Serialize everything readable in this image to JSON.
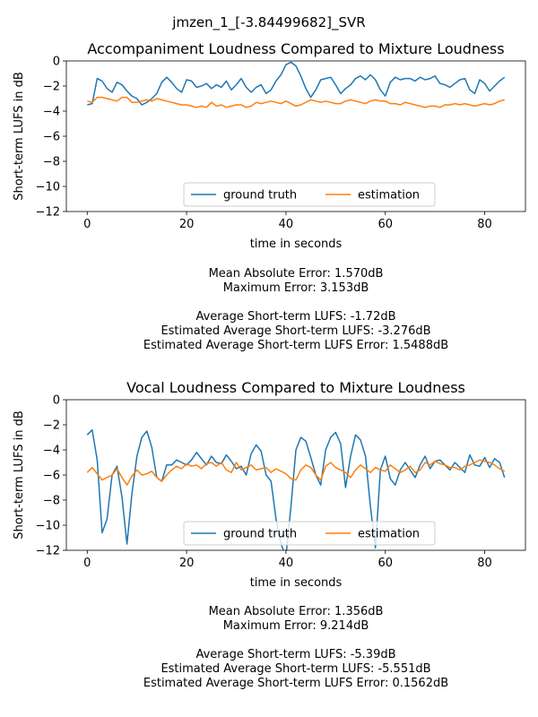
{
  "figure_title": "jmzen_1_[-3.84499682]_SVR",
  "chart_data": [
    {
      "type": "line",
      "title": "Accompaniment Loudness Compared to Mixture Loudness",
      "xlabel": "time in seconds",
      "ylabel": "Short-term LUFS in dB",
      "xlim": [
        -4.2,
        88.2
      ],
      "ylim": [
        -12,
        0
      ],
      "xticks": [
        0,
        20,
        40,
        60,
        80
      ],
      "yticks": [
        0,
        -2,
        -4,
        -6,
        -8,
        -10,
        -12
      ],
      "grid": false,
      "legend": {
        "placement": "lower-center",
        "columns": 2
      },
      "series": [
        {
          "name": "ground truth",
          "color": "#1f77b4",
          "x": [
            0,
            1,
            2,
            3,
            4,
            5,
            6,
            7,
            8,
            9,
            10,
            11,
            12,
            13,
            14,
            15,
            16,
            17,
            18,
            19,
            20,
            21,
            22,
            23,
            24,
            25,
            26,
            27,
            28,
            29,
            30,
            31,
            32,
            33,
            34,
            35,
            36,
            37,
            38,
            39,
            40,
            41,
            42,
            43,
            44,
            45,
            46,
            47,
            48,
            49,
            50,
            51,
            52,
            53,
            54,
            55,
            56,
            57,
            58,
            59,
            60,
            61,
            62,
            63,
            64,
            65,
            66,
            67,
            68,
            69,
            70,
            71,
            72,
            73,
            74,
            75,
            76,
            77,
            78,
            79,
            80,
            81,
            82,
            83,
            84
          ],
          "y": [
            -3.5,
            -3.4,
            -1.4,
            -1.6,
            -2.2,
            -2.5,
            -1.7,
            -1.9,
            -2.4,
            -2.8,
            -3.0,
            -3.5,
            -3.3,
            -3.0,
            -2.6,
            -1.7,
            -1.3,
            -1.7,
            -2.2,
            -2.5,
            -1.5,
            -1.6,
            -2.1,
            -2.0,
            -1.8,
            -2.2,
            -1.9,
            -2.1,
            -1.6,
            -2.3,
            -1.9,
            -1.4,
            -2.1,
            -2.5,
            -2.1,
            -1.9,
            -2.6,
            -2.3,
            -1.6,
            -1.1,
            -0.3,
            -0.1,
            -0.4,
            -1.2,
            -2.2,
            -2.9,
            -2.3,
            -1.5,
            -1.4,
            -1.3,
            -1.9,
            -2.6,
            -2.2,
            -1.9,
            -1.4,
            -1.2,
            -1.5,
            -1.1,
            -1.5,
            -2.3,
            -2.8,
            -1.7,
            -1.3,
            -1.5,
            -1.4,
            -1.4,
            -1.6,
            -1.3,
            -1.5,
            -1.4,
            -1.2,
            -1.8,
            -1.9,
            -2.1,
            -1.8,
            -1.5,
            -1.4,
            -2.3,
            -2.6,
            -1.5,
            -1.8,
            -2.4,
            -2.0,
            -1.6,
            -1.3
          ]
        },
        {
          "name": "estimation",
          "color": "#ff7f0e",
          "x": [
            0,
            1,
            2,
            3,
            4,
            5,
            6,
            7,
            8,
            9,
            10,
            11,
            12,
            13,
            14,
            15,
            16,
            17,
            18,
            19,
            20,
            21,
            22,
            23,
            24,
            25,
            26,
            27,
            28,
            29,
            30,
            31,
            32,
            33,
            34,
            35,
            36,
            37,
            38,
            39,
            40,
            41,
            42,
            43,
            44,
            45,
            46,
            47,
            48,
            49,
            50,
            51,
            52,
            53,
            54,
            55,
            56,
            57,
            58,
            59,
            60,
            61,
            62,
            63,
            64,
            65,
            66,
            67,
            68,
            69,
            70,
            71,
            72,
            73,
            74,
            75,
            76,
            77,
            78,
            79,
            80,
            81,
            82,
            83,
            84
          ],
          "y": [
            -3.2,
            -3.3,
            -2.9,
            -2.9,
            -3.0,
            -3.1,
            -3.2,
            -2.9,
            -2.9,
            -3.3,
            -3.3,
            -3.2,
            -3.1,
            -3.2,
            -3.0,
            -3.1,
            -3.2,
            -3.3,
            -3.4,
            -3.5,
            -3.5,
            -3.6,
            -3.7,
            -3.6,
            -3.7,
            -3.3,
            -3.6,
            -3.5,
            -3.7,
            -3.6,
            -3.5,
            -3.5,
            -3.7,
            -3.6,
            -3.3,
            -3.4,
            -3.3,
            -3.2,
            -3.3,
            -3.4,
            -3.2,
            -3.4,
            -3.6,
            -3.5,
            -3.3,
            -3.1,
            -3.2,
            -3.3,
            -3.2,
            -3.3,
            -3.4,
            -3.4,
            -3.2,
            -3.1,
            -3.2,
            -3.3,
            -3.4,
            -3.2,
            -3.1,
            -3.2,
            -3.2,
            -3.4,
            -3.4,
            -3.5,
            -3.3,
            -3.4,
            -3.5,
            -3.6,
            -3.7,
            -3.6,
            -3.6,
            -3.7,
            -3.5,
            -3.5,
            -3.4,
            -3.5,
            -3.4,
            -3.5,
            -3.6,
            -3.5,
            -3.4,
            -3.5,
            -3.4,
            -3.2,
            -3.1
          ]
        }
      ],
      "annotations": [
        "Mean Absolute Error: 1.570dB",
        "Maximum Error: 3.153dB",
        "",
        "Average Short-term LUFS: -1.72dB",
        "Estimated Average Short-term LUFS: -3.276dB",
        "Estimated Average Short-term LUFS Error: 1.5488dB"
      ]
    },
    {
      "type": "line",
      "title": "Vocal Loudness Compared to Mixture Loudness",
      "xlabel": "time in seconds",
      "ylabel": "Short-term LUFS in dB",
      "xlim": [
        -4.2,
        88.2
      ],
      "ylim": [
        -12,
        0
      ],
      "xticks": [
        0,
        20,
        40,
        60,
        80
      ],
      "yticks": [
        0,
        -2,
        -4,
        -6,
        -8,
        -10,
        -12
      ],
      "grid": false,
      "legend": {
        "placement": "lower-center",
        "columns": 2
      },
      "series": [
        {
          "name": "ground truth",
          "color": "#1f77b4",
          "x": [
            0,
            1,
            2,
            3,
            4,
            5,
            6,
            7,
            8,
            9,
            10,
            11,
            12,
            13,
            14,
            15,
            16,
            17,
            18,
            19,
            20,
            21,
            22,
            23,
            24,
            25,
            26,
            27,
            28,
            29,
            30,
            31,
            32,
            33,
            34,
            35,
            36,
            37,
            38,
            39,
            40,
            41,
            42,
            43,
            44,
            45,
            46,
            47,
            48,
            49,
            50,
            51,
            52,
            53,
            54,
            55,
            56,
            57,
            58,
            59,
            60,
            61,
            62,
            63,
            64,
            65,
            66,
            67,
            68,
            69,
            70,
            71,
            72,
            73,
            74,
            75,
            76,
            77,
            78,
            79,
            80,
            81,
            82,
            83,
            84
          ],
          "y": [
            -2.8,
            -2.4,
            -4.8,
            -10.6,
            -9.5,
            -6.0,
            -5.3,
            -7.8,
            -11.5,
            -7.5,
            -4.5,
            -3.0,
            -2.5,
            -3.8,
            -6.2,
            -6.5,
            -5.2,
            -5.2,
            -4.8,
            -5.0,
            -5.2,
            -4.8,
            -4.2,
            -4.7,
            -5.2,
            -4.5,
            -5.0,
            -5.1,
            -4.4,
            -4.9,
            -5.5,
            -5.3,
            -6.0,
            -4.3,
            -3.6,
            -4.1,
            -6.0,
            -6.5,
            -9.5,
            -11.5,
            -12.5,
            -8.5,
            -4.0,
            -3.0,
            -3.3,
            -4.6,
            -6.0,
            -6.8,
            -4.0,
            -3.0,
            -2.6,
            -3.5,
            -7.0,
            -4.5,
            -2.8,
            -3.2,
            -4.5,
            -8.5,
            -11.8,
            -5.6,
            -4.5,
            -6.3,
            -6.8,
            -5.6,
            -5.0,
            -5.6,
            -6.2,
            -5.2,
            -4.5,
            -5.5,
            -4.9,
            -4.8,
            -5.2,
            -5.6,
            -5.0,
            -5.4,
            -5.8,
            -4.4,
            -5.2,
            -5.3,
            -4.6,
            -5.4,
            -4.7,
            -5.0,
            -6.2
          ]
        },
        {
          "name": "estimation",
          "color": "#ff7f0e",
          "x": [
            0,
            1,
            2,
            3,
            4,
            5,
            6,
            7,
            8,
            9,
            10,
            11,
            12,
            13,
            14,
            15,
            16,
            17,
            18,
            19,
            20,
            21,
            22,
            23,
            24,
            25,
            26,
            27,
            28,
            29,
            30,
            31,
            32,
            33,
            34,
            35,
            36,
            37,
            38,
            39,
            40,
            41,
            42,
            43,
            44,
            45,
            46,
            47,
            48,
            49,
            50,
            51,
            52,
            53,
            54,
            55,
            56,
            57,
            58,
            59,
            60,
            61,
            62,
            63,
            64,
            65,
            66,
            67,
            68,
            69,
            70,
            71,
            72,
            73,
            74,
            75,
            76,
            77,
            78,
            79,
            80,
            81,
            82,
            83,
            84
          ],
          "y": [
            -5.8,
            -5.4,
            -5.9,
            -6.4,
            -6.2,
            -6.0,
            -5.5,
            -6.2,
            -6.8,
            -6.1,
            -5.6,
            -6.0,
            -5.9,
            -5.7,
            -6.2,
            -6.5,
            -6.0,
            -5.6,
            -5.3,
            -5.5,
            -5.1,
            -5.3,
            -5.2,
            -5.5,
            -5.1,
            -5.0,
            -5.3,
            -5.0,
            -5.6,
            -5.8,
            -5.0,
            -5.6,
            -5.4,
            -5.2,
            -5.6,
            -5.5,
            -5.4,
            -5.8,
            -5.5,
            -5.7,
            -5.9,
            -6.3,
            -6.4,
            -5.6,
            -5.2,
            -5.4,
            -6.0,
            -6.4,
            -5.3,
            -5.0,
            -5.4,
            -5.6,
            -5.8,
            -6.2,
            -5.6,
            -5.2,
            -5.5,
            -5.8,
            -5.4,
            -5.6,
            -5.7,
            -5.2,
            -5.5,
            -5.8,
            -5.6,
            -5.3,
            -5.8,
            -5.6,
            -5.0,
            -5.2,
            -4.9,
            -5.1,
            -5.2,
            -5.4,
            -5.4,
            -5.6,
            -5.3,
            -5.2,
            -5.0,
            -4.8,
            -4.9,
            -5.0,
            -5.2,
            -5.5,
            -5.7
          ]
        }
      ],
      "annotations": [
        "Mean Absolute Error: 1.356dB",
        "Maximum Error: 9.214dB",
        "",
        "Average Short-term LUFS: -5.39dB",
        "Estimated Average Short-term LUFS: -5.551dB",
        "Estimated Average Short-term LUFS Error: 0.1562dB"
      ]
    }
  ]
}
